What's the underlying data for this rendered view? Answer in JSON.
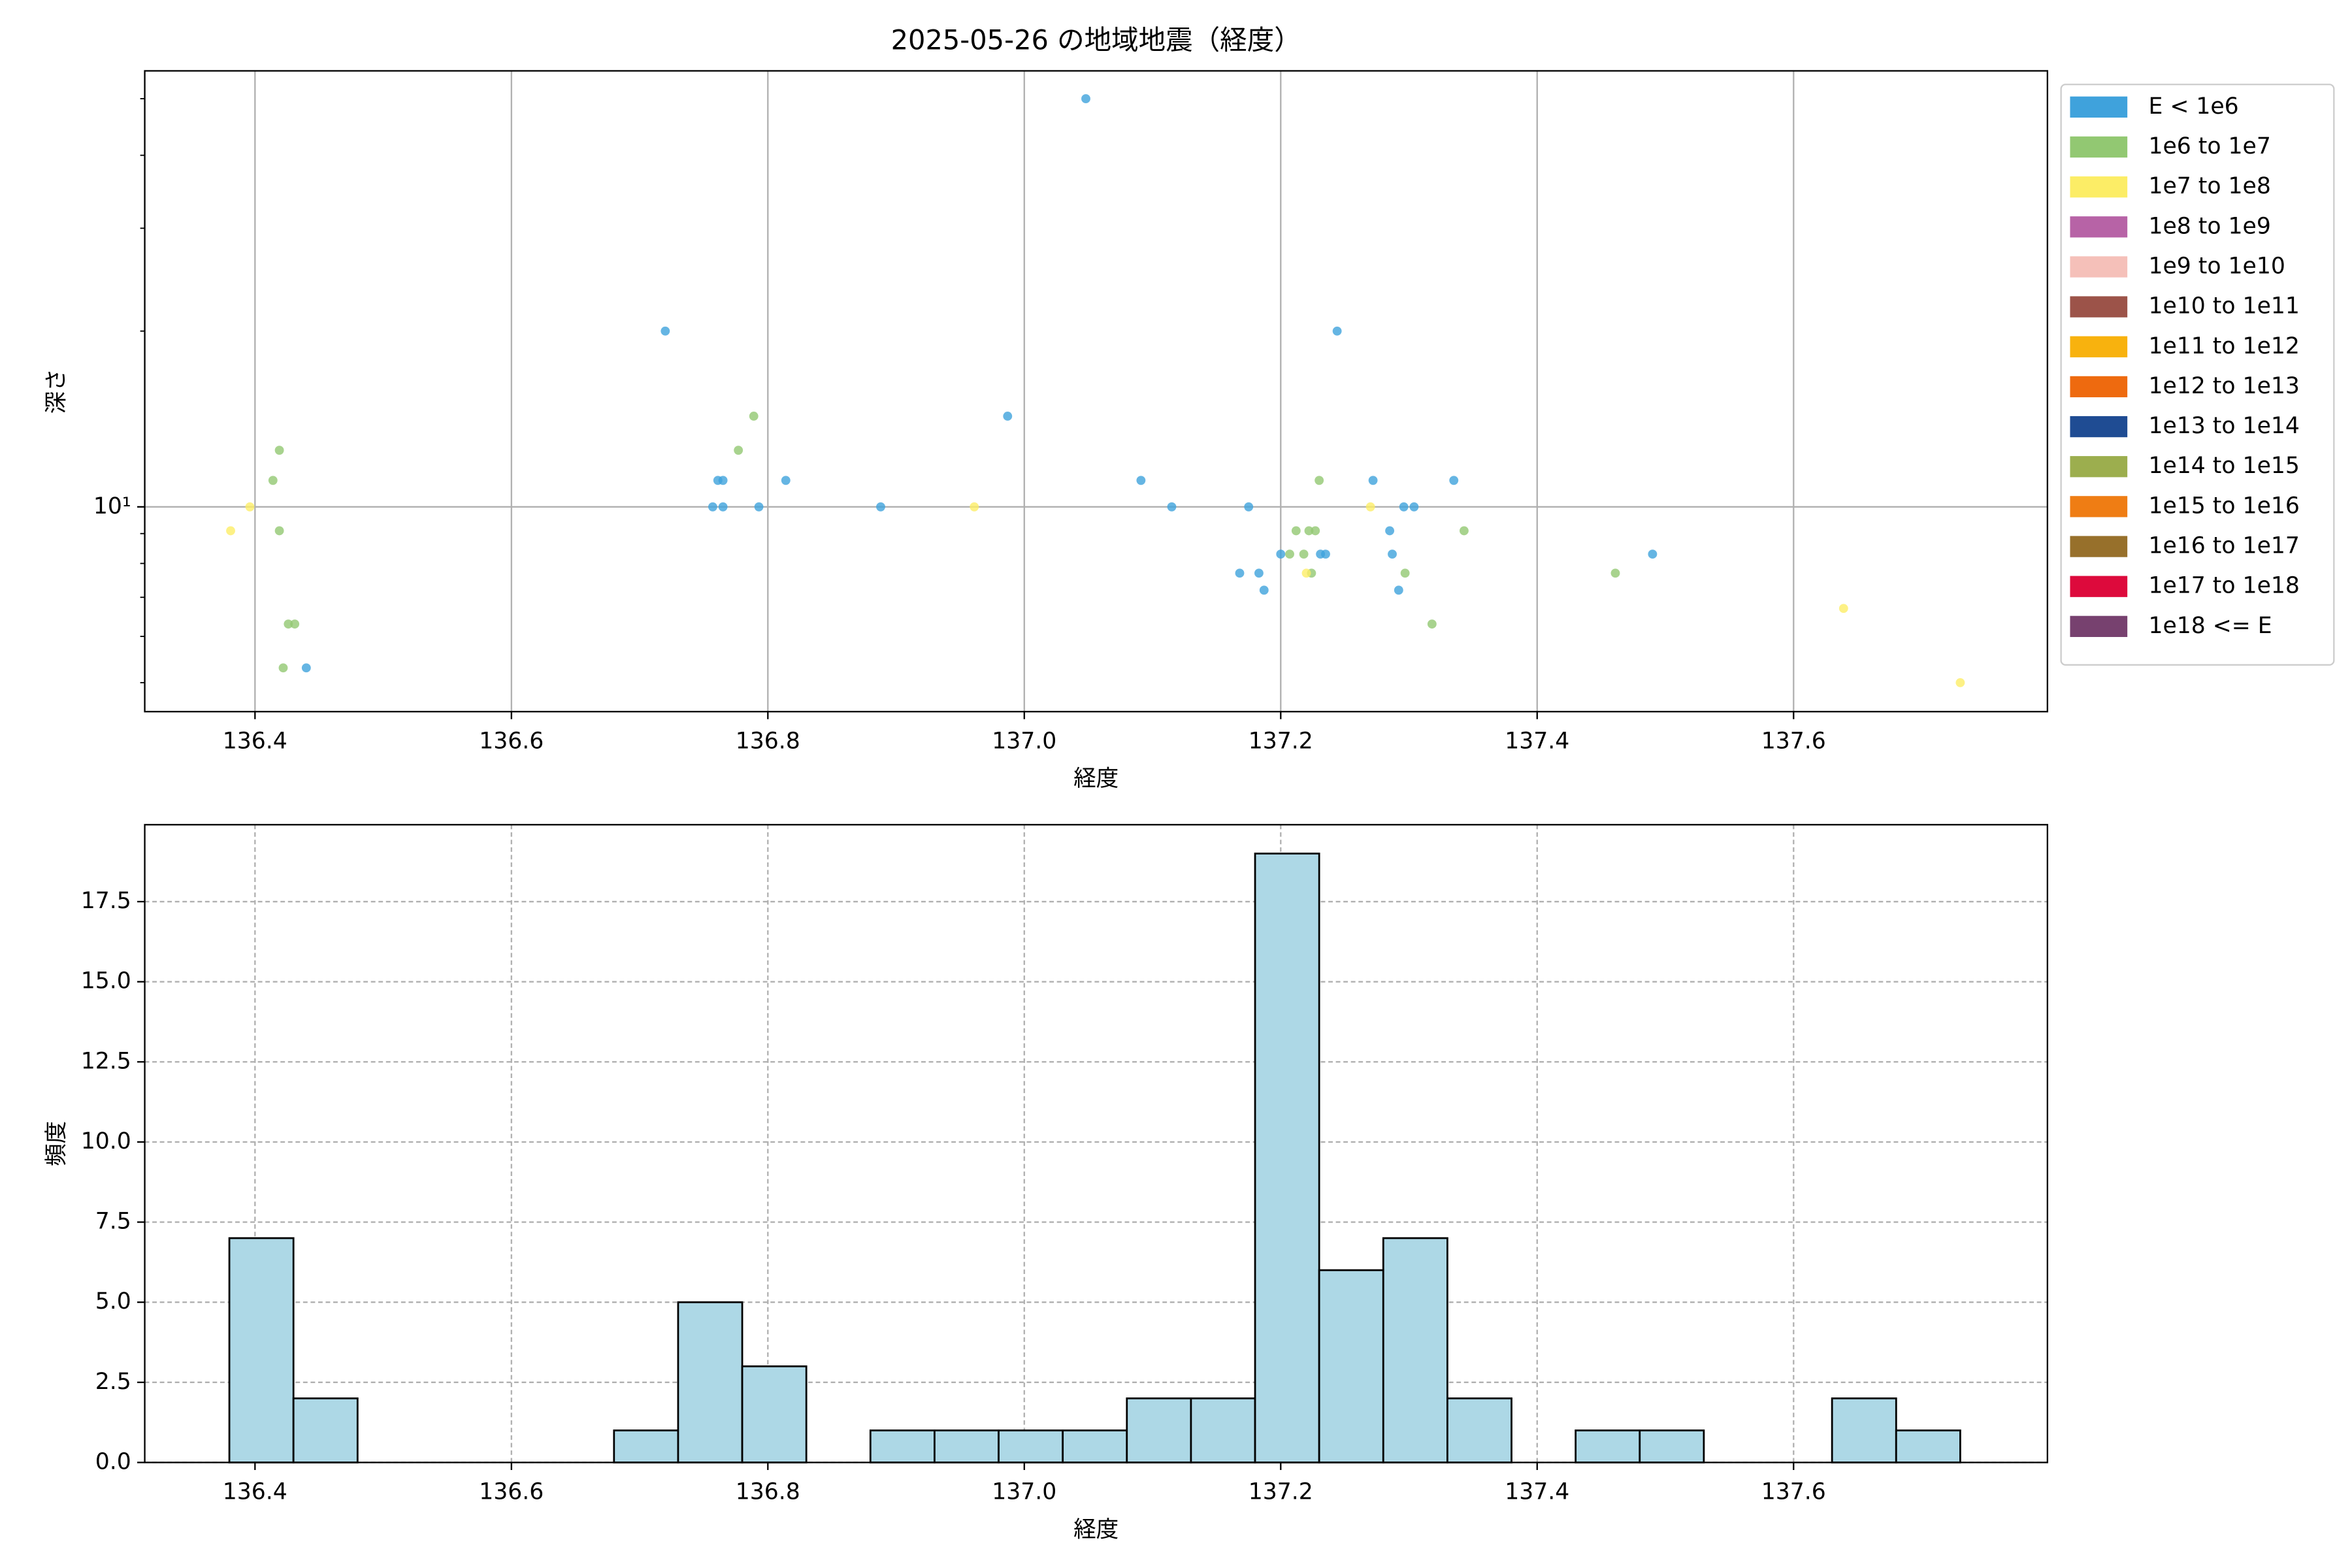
{
  "chart_data": [
    {
      "type": "scatter",
      "title": "2025-05-26 の地域地震（経度）",
      "x_label": "経度",
      "y_label": "深さ",
      "log_y": true,
      "grid": true,
      "legend": "outside upper right",
      "xlim": [
        136.314,
        137.798
      ],
      "xticks": [
        136.4,
        136.6,
        136.8,
        {
          "value": 137,
          "label": "137.0"
        },
        137.2,
        137.4,
        137.6
      ],
      "ylim": [
        4.46,
        55.8
      ],
      "yticks": [
        {
          "value": 10,
          "label": "10¹"
        }
      ],
      "series": [
        {
          "name": "E < 1e6",
          "color": "#3fa2dc",
          "x": [
            137.048,
            136.72,
            137.244,
            136.987,
            136.761,
            136.765,
            136.814,
            137.091,
            137.272,
            137.335,
            136.757,
            136.765,
            136.793,
            136.888,
            137.115,
            137.175,
            137.296,
            137.304,
            137.285,
            137.2,
            137.231,
            137.235,
            137.287,
            137.49,
            137.168,
            137.183,
            137.187,
            137.292,
            136.44
          ],
          "values": [
            50,
            20,
            20,
            14.3,
            11.1,
            11.1,
            11.1,
            11.1,
            11.1,
            11.1,
            10,
            10,
            10,
            10,
            10,
            10,
            10,
            10,
            9.1,
            8.3,
            8.3,
            8.3,
            8.3,
            8.3,
            7.7,
            7.7,
            7.2,
            7.2,
            5.3
          ]
        },
        {
          "name": "1e6 to 1e7",
          "color": "#92c872",
          "x": [
            136.419,
            136.777,
            136.789,
            136.414,
            137.23,
            136.419,
            137.212,
            137.222,
            137.227,
            137.343,
            137.207,
            137.218,
            137.297,
            137.224,
            137.461,
            136.426,
            136.431,
            137.318,
            136.422
          ],
          "values": [
            12.5,
            12.5,
            14.3,
            11.1,
            11.1,
            9.1,
            9.1,
            9.1,
            9.1,
            9.1,
            8.3,
            8.3,
            7.7,
            7.7,
            7.7,
            6.3,
            6.3,
            6.3,
            5.3
          ]
        },
        {
          "name": "1e7 to 1e8",
          "color": "#fced66",
          "x": [
            136.381,
            136.396,
            136.961,
            137.27,
            137.22,
            137.639,
            137.73
          ],
          "values": [
            9.1,
            10,
            10,
            10,
            7.7,
            6.7,
            5.0
          ]
        },
        {
          "name": "1e8 to 1e9",
          "color": "#b763a6",
          "x": [],
          "values": []
        },
        {
          "name": "1e9 to 1e10",
          "color": "#f5c0b9",
          "x": [],
          "values": []
        },
        {
          "name": "1e10 to 1e11",
          "color": "#9c5349",
          "x": [],
          "values": []
        },
        {
          "name": "1e11 to 1e12",
          "color": "#f8b20e",
          "x": [],
          "values": []
        },
        {
          "name": "1e12 to 1e13",
          "color": "#ee6a0f",
          "x": [],
          "values": []
        },
        {
          "name": "1e13 to 1e14",
          "color": "#1f4c93",
          "x": [],
          "values": []
        },
        {
          "name": "1e14 to 1e15",
          "color": "#9cae4e",
          "x": [],
          "values": []
        },
        {
          "name": "1e15 to 1e16",
          "color": "#ef7d14",
          "x": [],
          "values": []
        },
        {
          "name": "1e16 to 1e17",
          "color": "#97702b",
          "x": [],
          "values": []
        },
        {
          "name": "1e17 to 1e18",
          "color": "#dd0a3c",
          "x": [],
          "values": []
        },
        {
          "name": "1e18 <= E",
          "color": "#77416f",
          "x": [],
          "values": []
        }
      ]
    },
    {
      "type": "histogram",
      "x_label": "経度",
      "y_label": "頻度",
      "grid": true,
      "color": "#add8e6",
      "xlim": [
        136.314,
        137.798
      ],
      "xticks": [
        136.4,
        136.6,
        136.8,
        {
          "value": 137,
          "label": "137.0"
        },
        137.2,
        137.4,
        137.6
      ],
      "ylim": [
        0,
        19.9
      ],
      "yticks": [
        {
          "value": 0,
          "label": "0.0"
        },
        2.5,
        {
          "value": 5,
          "label": "5.0"
        },
        7.5,
        {
          "value": 10,
          "label": "10.0"
        },
        12.5,
        {
          "value": 15,
          "label": "15.0"
        },
        17.5
      ],
      "bins": [
        136.38,
        136.43,
        136.48,
        136.53,
        136.58,
        136.63,
        136.68,
        136.73,
        136.78,
        136.83,
        136.88,
        136.93,
        136.98,
        137.03,
        137.08,
        137.13,
        137.18,
        137.23,
        137.28,
        137.33,
        137.38,
        137.43,
        137.48,
        137.53,
        137.58,
        137.63,
        137.68,
        137.73
      ],
      "counts": [
        7,
        2,
        0,
        0,
        0,
        0,
        1,
        5,
        3,
        0,
        1,
        1,
        1,
        1,
        2,
        2,
        19,
        6,
        7,
        2,
        0,
        1,
        1,
        0,
        0,
        2,
        1
      ]
    }
  ]
}
